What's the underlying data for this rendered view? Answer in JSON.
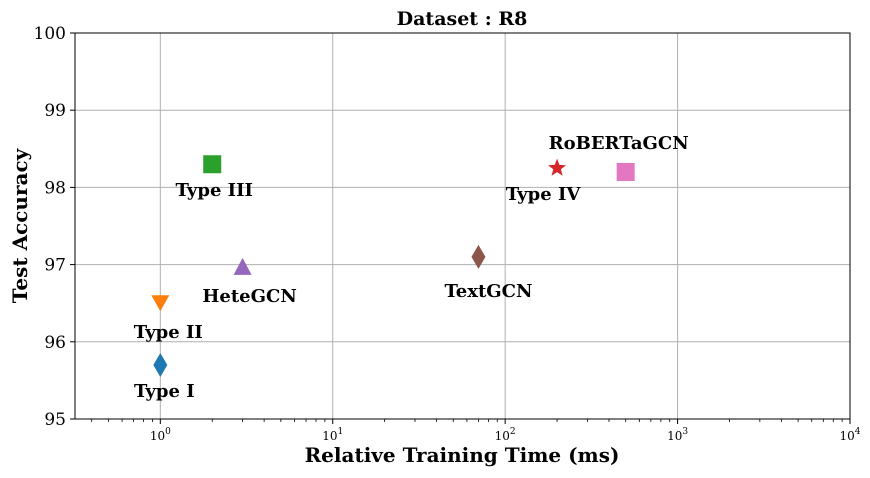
{
  "chart_data": {
    "type": "scatter",
    "title": "Dataset : R8",
    "xlabel": "Relative Training Time (ms)",
    "ylabel": "Test Accuracy",
    "xscale": "log",
    "xlim": [
      0.32,
      10000
    ],
    "ylim": [
      95,
      100
    ],
    "grid": true,
    "x_ticks": [
      {
        "base": "10",
        "exp": "0"
      },
      {
        "base": "10",
        "exp": "1"
      },
      {
        "base": "10",
        "exp": "2"
      },
      {
        "base": "10",
        "exp": "3"
      },
      {
        "base": "10",
        "exp": "4"
      }
    ],
    "y_ticks": [
      "95",
      "96",
      "97",
      "98",
      "99",
      "100"
    ],
    "points": [
      {
        "label": "Type I",
        "x": 1.0,
        "y": 95.7,
        "marker": "thin-diamond",
        "color": "#1f77b4"
      },
      {
        "label": "Type II",
        "x": 1.0,
        "y": 96.5,
        "marker": "triangle-down",
        "color": "#ff7f0e"
      },
      {
        "label": "Type III",
        "x": 2.0,
        "y": 98.3,
        "marker": "square",
        "color": "#2ca02c"
      },
      {
        "label": "HeteGCN",
        "x": 3.0,
        "y": 96.97,
        "marker": "triangle-up",
        "color": "#9467bd"
      },
      {
        "label": "TextGCN",
        "x": 70,
        "y": 97.1,
        "marker": "thin-diamond",
        "color": "#8c564b"
      },
      {
        "label": "Type IV",
        "x": 200,
        "y": 98.25,
        "marker": "star",
        "color": "#d62728"
      },
      {
        "label": "RoBERTaGCN",
        "x": 500,
        "y": 98.2,
        "marker": "square",
        "color": "#e377c2"
      }
    ]
  }
}
